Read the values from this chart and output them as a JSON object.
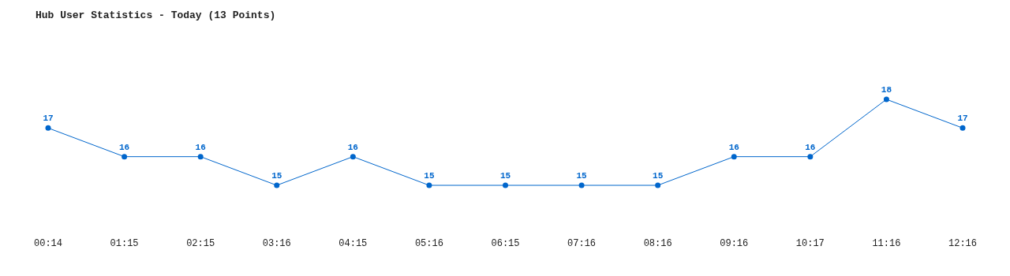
{
  "chart_data": {
    "type": "line",
    "title": "Hub User Statistics - Today (13 Points)",
    "categories": [
      "00:14",
      "01:15",
      "02:15",
      "03:16",
      "04:15",
      "05:16",
      "06:15",
      "07:16",
      "08:16",
      "09:16",
      "10:17",
      "11:16",
      "12:16"
    ],
    "series": [
      {
        "color": "#0066cc",
        "values": [
          17,
          16,
          16,
          15,
          16,
          15,
          15,
          15,
          15,
          16,
          16,
          18,
          17
        ]
      }
    ],
    "data_labels": true,
    "marker": "circle",
    "line_style": "solid",
    "grid": false
  }
}
